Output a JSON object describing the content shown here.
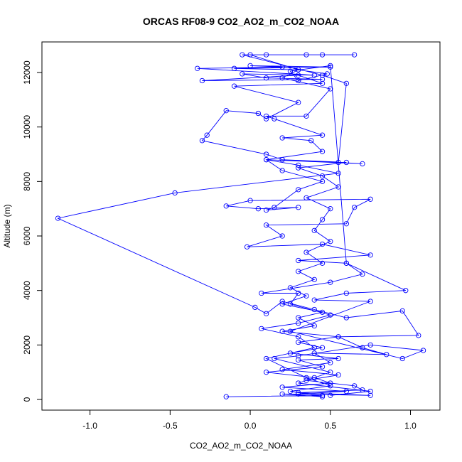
{
  "chart_data": {
    "type": "line",
    "title": "ORCAS RF08-9 CO2_AO2_m_CO2_NOAA",
    "x_label": "CO2_AO2_m_CO2_NOAA",
    "y_label": "Altitude (m)",
    "xlim": [
      -1.3,
      1.184
    ],
    "ylim": [
      -391,
      13122
    ],
    "xticks": [
      {
        "value": -1,
        "label": "-1.0"
      },
      -0.5,
      {
        "value": 0,
        "label": "0.0"
      },
      0.5,
      {
        "value": 1,
        "label": "1.0"
      }
    ],
    "yticks": [
      0,
      2000,
      4000,
      6000,
      8000,
      10000,
      12000
    ],
    "grid": false,
    "series": [
      {
        "color": "#0000ff",
        "x": [
          -0.15,
          0.45,
          0.3,
          0.6,
          0.2,
          0.5,
          0.4,
          0.1,
          0.45,
          0.3,
          0.55,
          0.25,
          0.45,
          0.3,
          0.55,
          0.2,
          0.4,
          0.3,
          0.45,
          0.2,
          0.35,
          0.25,
          0.4,
          0.3,
          0.45,
          0.35,
          0.5,
          0.4,
          0.45,
          0.5,
          0.35,
          0.55,
          0.45,
          0.3,
          0.6,
          0.2,
          0.1,
          -0.3,
          -0.27,
          -0.15,
          0.05,
          0.1,
          0.3,
          -0.1,
          0.45,
          0.3,
          -0.3,
          0.45,
          0.1,
          -0.05,
          0.4,
          -0.33,
          0.2,
          0.0,
          0.5,
          -0.1,
          0.3,
          0.0,
          0.65,
          0.45,
          0.1,
          0.35,
          -0.05,
          0.45,
          0.6,
          0.55,
          0.7,
          0.1,
          0.3,
          0.55,
          -0.47,
          -1.2,
          0.03,
          0.1,
          0.2,
          0.4,
          0.6,
          0.95,
          1.05,
          0.55,
          0.7,
          0.85,
          0.4,
          0.5,
          0.2,
          0.55,
          0.35,
          0.65,
          0.7,
          0.3,
          0.75,
          0.2,
          0.45,
          0.25,
          0.5,
          0.35,
          0.1,
          0.4,
          0.3,
          0.07,
          0.3,
          0.5,
          0.25,
          0.3,
          0.07,
          0.5,
          0.7,
          0.6,
          0.3,
          0.75,
          0.45,
          -0.02,
          0.2,
          0.1,
          0.6,
          0.65,
          0.75,
          0.0,
          -0.15,
          0.05,
          0.3,
          0.1,
          0.15,
          0.3,
          0.45,
          0.2,
          0.1,
          0.45,
          0.38,
          0.2,
          0.45,
          0.15,
          0.1,
          0.35,
          0.5,
          0.2,
          0.3,
          0.48,
          0.3,
          0.25,
          0.5,
          0.6,
          0.97,
          0.6,
          0.4,
          0.75,
          0.25,
          0.95,
          1.08,
          0.75,
          0.3,
          0.15,
          0.5,
          0.3,
          0.75,
          0.5
        ],
        "values": [
          100,
          150,
          200,
          300,
          450,
          600,
          800,
          1000,
          1200,
          1450,
          1500,
          1700,
          1900,
          2100,
          2300,
          2500,
          2700,
          3000,
          3200,
          3500,
          3800,
          4100,
          4400,
          4700,
          5000,
          5400,
          5800,
          6200,
          6600,
          7000,
          7400,
          7800,
          8200,
          8500,
          8700,
          8800,
          9000,
          9500,
          9700,
          10600,
          10500,
          10300,
          10900,
          11500,
          11600,
          11900,
          11700,
          11750,
          11800,
          11950,
          11900,
          12150,
          12200,
          12250,
          12200,
          12150,
          12100,
          12650,
          12650,
          12650,
          12650,
          12650,
          12650,
          11900,
          11600,
          8700,
          8650,
          8800,
          8600,
          8300,
          7580,
          6650,
          3380,
          3150,
          3600,
          3300,
          3000,
          3250,
          2350,
          2300,
          1900,
          1650,
          1700,
          1350,
          1100,
          900,
          700,
          500,
          350,
          250,
          150,
          200,
          100,
          300,
          500,
          800,
          1500,
          1900,
          2300,
          2600,
          2800,
          3100,
          3500,
          3900,
          3900,
          4300,
          4600,
          5000,
          5100,
          5300,
          5700,
          5600,
          6000,
          6400,
          6450,
          7050,
          7350,
          7300,
          7100,
          7000,
          7050,
          6950,
          7050,
          7700,
          8000,
          8400,
          8800,
          9100,
          9500,
          9600,
          9700,
          10300,
          10400,
          10400,
          11400,
          11800,
          12100,
          11950,
          11700,
          12050,
          12250,
          5000,
          4000,
          3900,
          3650,
          3600,
          2500,
          1500,
          1800,
          2000,
          1600,
          1500,
          1000,
          600,
          300,
          150
        ]
      }
    ]
  }
}
